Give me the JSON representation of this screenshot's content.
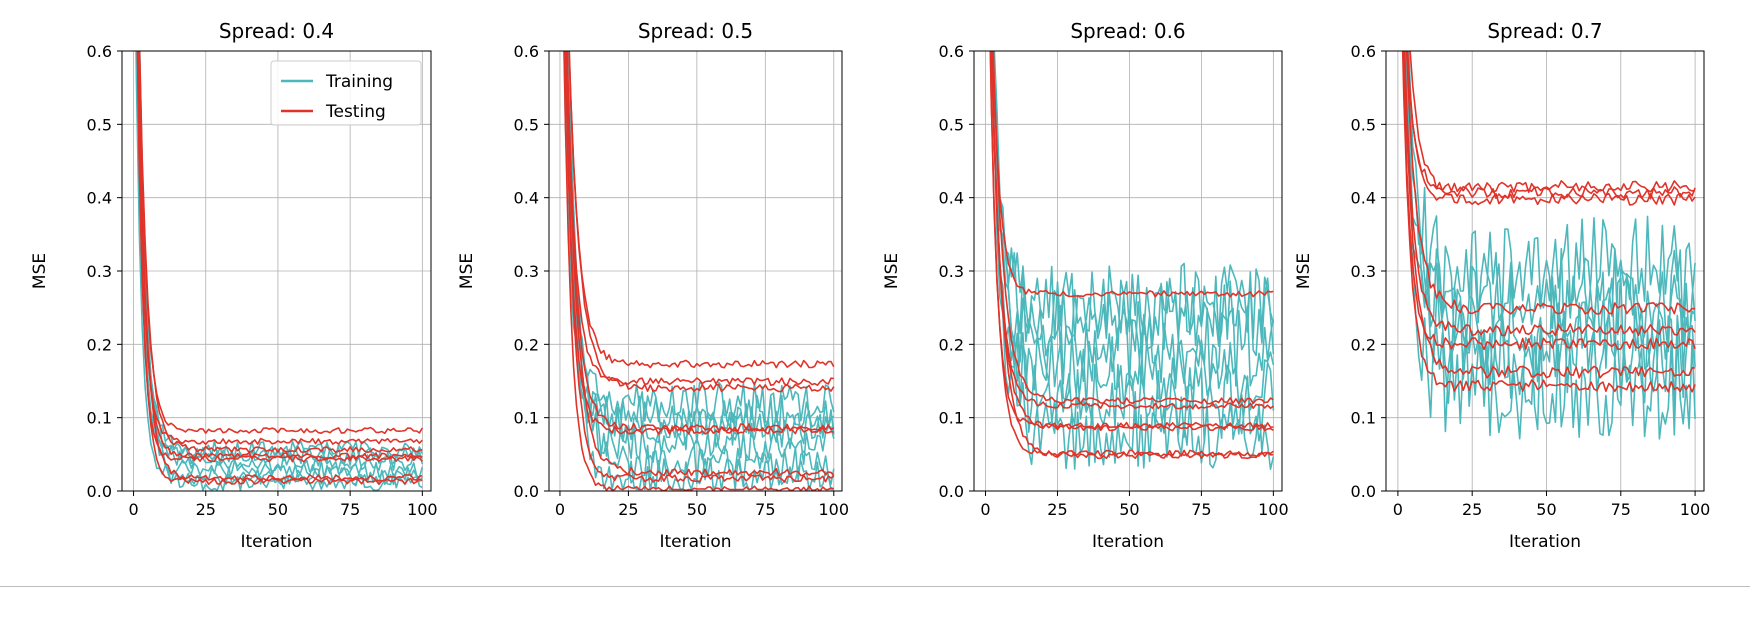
{
  "chart_data": [
    {
      "type": "line",
      "title": "Spread: 0.4",
      "xlabel": "Iteration",
      "ylabel": "MSE",
      "xlim": [
        -4,
        103
      ],
      "ylim": [
        0,
        0.6
      ],
      "xticks": [
        0,
        25,
        50,
        75,
        100
      ],
      "yticks": [
        0.0,
        0.1,
        0.2,
        0.3,
        0.4,
        0.5,
        0.6
      ],
      "grid": true,
      "legend": {
        "placement": "top-right",
        "entries": [
          "Training",
          "Testing"
        ]
      },
      "series": [
        {
          "name": "Training",
          "color": "#4db8bc",
          "finals": [
            0.01,
            0.02,
            0.03,
            0.04,
            0.05,
            0.06
          ],
          "noise": 0.012,
          "decay": 2.4
        },
        {
          "name": "Testing",
          "color": "#e0332a",
          "finals": [
            0.012,
            0.018,
            0.045,
            0.05,
            0.06,
            0.072,
            0.078
          ],
          "noise": 0.004,
          "decay": 2.4
        }
      ]
    },
    {
      "type": "line",
      "title": "Spread: 0.5",
      "xlabel": "Iteration",
      "ylabel": "MSE",
      "xlim": [
        -4,
        103
      ],
      "ylim": [
        0,
        0.6
      ],
      "xticks": [
        0,
        25,
        50,
        75,
        100
      ],
      "yticks": [
        0.0,
        0.1,
        0.2,
        0.3,
        0.4,
        0.5,
        0.6
      ],
      "grid": true,
      "series": [
        {
          "name": "Training",
          "color": "#4db8bc",
          "finals": [
            0.02,
            0.04,
            0.06,
            0.08,
            0.1,
            0.12
          ],
          "noise": 0.028,
          "decay": 3.2
        },
        {
          "name": "Testing",
          "color": "#e0332a",
          "finals": [
            0.006,
            0.012,
            0.022,
            0.08,
            0.085,
            0.14,
            0.15,
            0.175
          ],
          "noise": 0.005,
          "decay": 3.2
        }
      ]
    },
    {
      "type": "line",
      "title": "Spread: 0.6",
      "xlabel": "Iteration",
      "ylabel": "MSE",
      "xlim": [
        -4,
        103
      ],
      "ylim": [
        0,
        0.6
      ],
      "xticks": [
        0,
        25,
        50,
        75,
        100
      ],
      "yticks": [
        0.0,
        0.1,
        0.2,
        0.3,
        0.4,
        0.5,
        0.6
      ],
      "grid": true,
      "series": [
        {
          "name": "Training",
          "color": "#4db8bc",
          "finals": [
            0.08,
            0.12,
            0.16,
            0.2,
            0.24,
            0.26
          ],
          "noise": 0.055,
          "decay": 3.0
        },
        {
          "name": "Testing",
          "color": "#e0332a",
          "finals": [
            0.048,
            0.052,
            0.088,
            0.092,
            0.12,
            0.128,
            0.265
          ],
          "noise": 0.004,
          "decay": 3.0
        }
      ]
    },
    {
      "type": "line",
      "title": "Spread: 0.7",
      "xlabel": "Iteration",
      "ylabel": "MSE",
      "xlim": [
        -4,
        103
      ],
      "ylim": [
        0,
        0.6
      ],
      "xticks": [
        0,
        25,
        50,
        75,
        100
      ],
      "yticks": [
        0.0,
        0.1,
        0.2,
        0.3,
        0.4,
        0.5,
        0.6
      ],
      "grid": true,
      "series": [
        {
          "name": "Training",
          "color": "#4db8bc",
          "finals": [
            0.15,
            0.18,
            0.22,
            0.26,
            0.3
          ],
          "noise": 0.075,
          "decay": 2.8
        },
        {
          "name": "Testing",
          "color": "#e0332a",
          "finals": [
            0.14,
            0.16,
            0.2,
            0.22,
            0.25,
            0.4,
            0.41,
            0.42
          ],
          "noise": 0.008,
          "decay": 2.8
        }
      ]
    }
  ]
}
